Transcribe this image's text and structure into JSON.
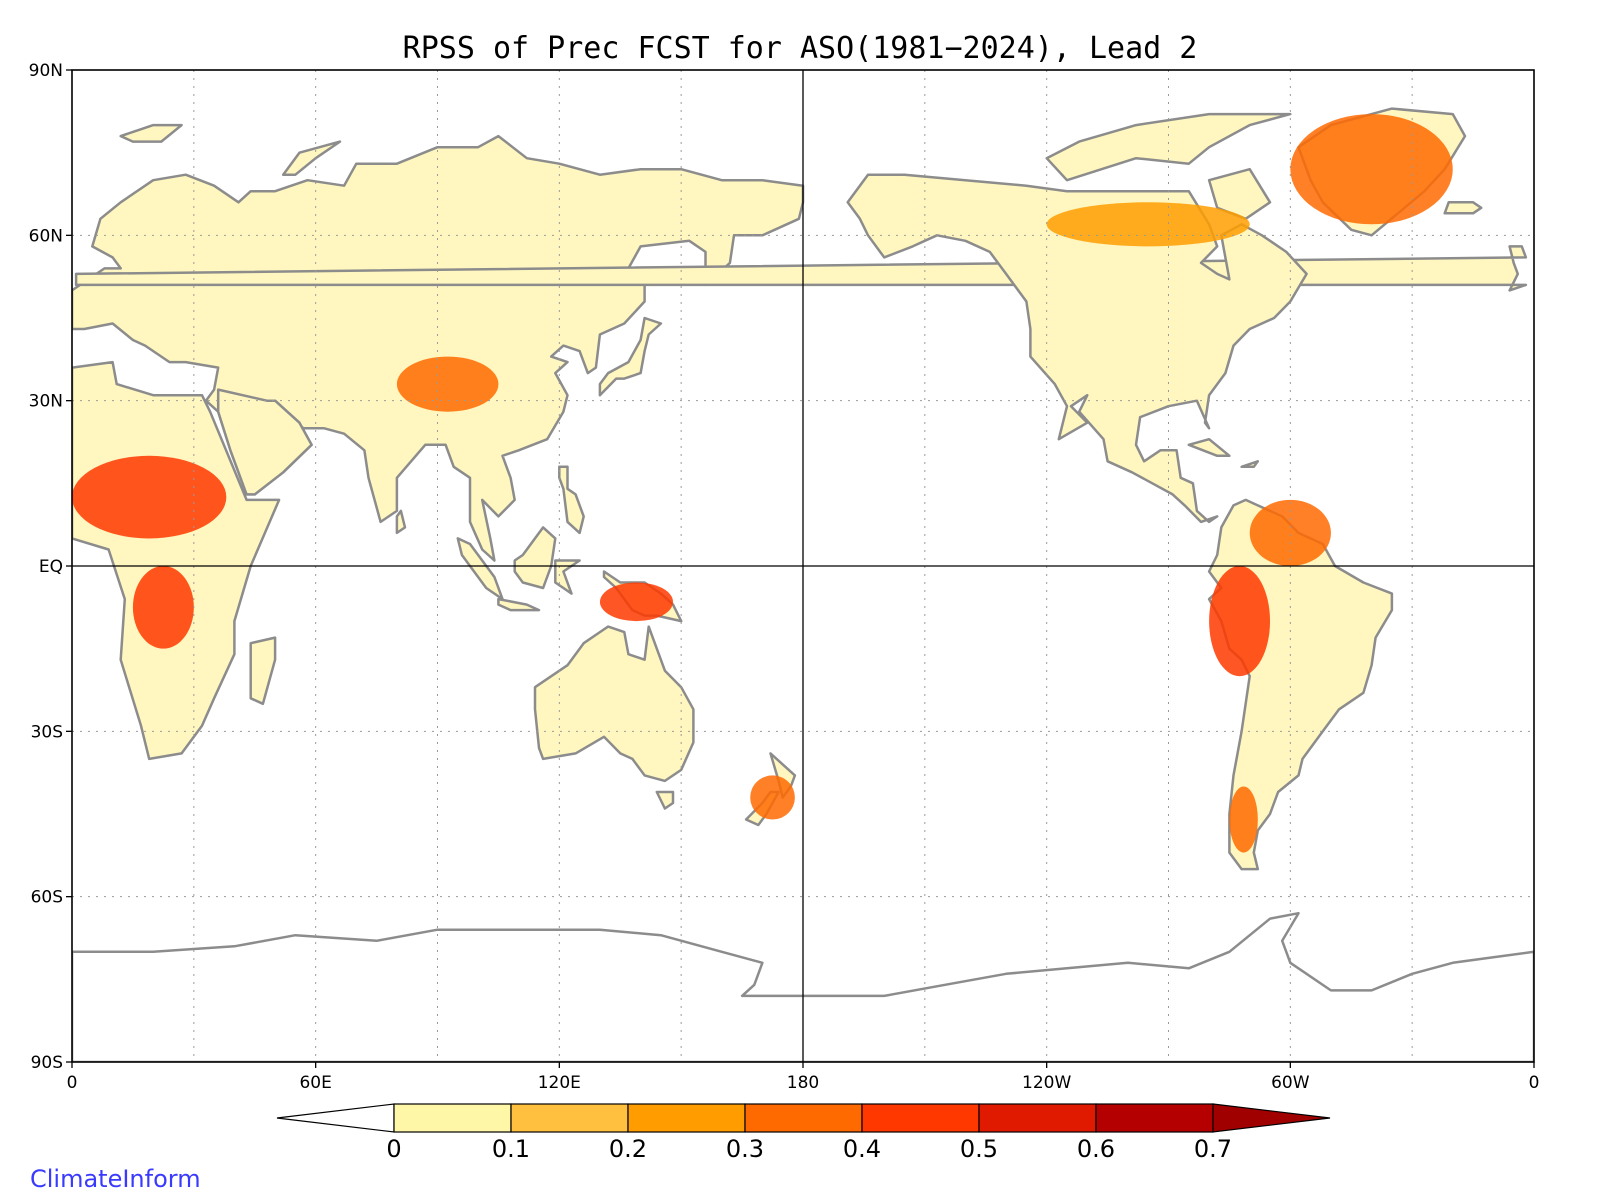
{
  "title": "RPSS of Prec FCST for ASO(1981−2024), Lead 2",
  "credit": "ClimateInform",
  "map": {
    "lon_range": [
      0,
      360
    ],
    "lat_range": [
      -90,
      90
    ],
    "center_meridian": 180,
    "lat_ticks": [
      {
        "value": 90,
        "label": "90N"
      },
      {
        "value": 60,
        "label": "60N"
      },
      {
        "value": 30,
        "label": "30N"
      },
      {
        "value": 0,
        "label": "EQ"
      },
      {
        "value": -30,
        "label": "30S"
      },
      {
        "value": -60,
        "label": "60S"
      },
      {
        "value": -90,
        "label": "90S"
      }
    ],
    "lon_ticks": [
      {
        "value": 0,
        "label": "0"
      },
      {
        "value": 60,
        "label": "60E"
      },
      {
        "value": 120,
        "label": "120E"
      },
      {
        "value": 180,
        "label": "180"
      },
      {
        "value": 240,
        "label": "120W"
      },
      {
        "value": 300,
        "label": "60W"
      },
      {
        "value": 360,
        "label": "0"
      }
    ],
    "grid": "dotted",
    "land_color": "#fff7bf",
    "coast_color": "#8c8c8c"
  },
  "colorbar": {
    "levels": [
      "0",
      "0.1",
      "0.2",
      "0.3",
      "0.4",
      "0.5",
      "0.6",
      "0.7"
    ],
    "colors": [
      "#ffffff",
      "#fff7a8",
      "#ffc040",
      "#ff9d00",
      "#ff6a00",
      "#ff3800",
      "#e01a00",
      "#b40000",
      "#a00000"
    ],
    "extend": "both"
  },
  "hotspots": [
    {
      "name": "west-africa-sahel",
      "lon_range": [
        0,
        38
      ],
      "lat_range": [
        5,
        20
      ],
      "level": 0.4
    },
    {
      "name": "central-africa",
      "lon_range": [
        15,
        30
      ],
      "lat_range": [
        -15,
        0
      ],
      "level": 0.4
    },
    {
      "name": "tibetan-plateau",
      "lon_range": [
        80,
        105
      ],
      "lat_range": [
        28,
        38
      ],
      "level": 0.3
    },
    {
      "name": "new-guinea",
      "lon_range": [
        130,
        148
      ],
      "lat_range": [
        -10,
        -3
      ],
      "level": 0.4
    },
    {
      "name": "greenland",
      "lon_range": [
        300,
        340
      ],
      "lat_range": [
        62,
        82
      ],
      "level": 0.3
    },
    {
      "name": "andes-peru",
      "lon_range": [
        280,
        295
      ],
      "lat_range": [
        -20,
        0
      ],
      "level": 0.4
    },
    {
      "name": "northern-south-america",
      "lon_range": [
        290,
        310
      ],
      "lat_range": [
        0,
        12
      ],
      "level": 0.3
    },
    {
      "name": "canada-north",
      "lon_range": [
        240,
        290
      ],
      "lat_range": [
        58,
        66
      ],
      "level": 0.2
    },
    {
      "name": "southern-chile",
      "lon_range": [
        285,
        292
      ],
      "lat_range": [
        -52,
        -40
      ],
      "level": 0.3
    },
    {
      "name": "new-zealand",
      "lon_range": [
        167,
        178
      ],
      "lat_range": [
        -46,
        -38
      ],
      "level": 0.3
    }
  ]
}
